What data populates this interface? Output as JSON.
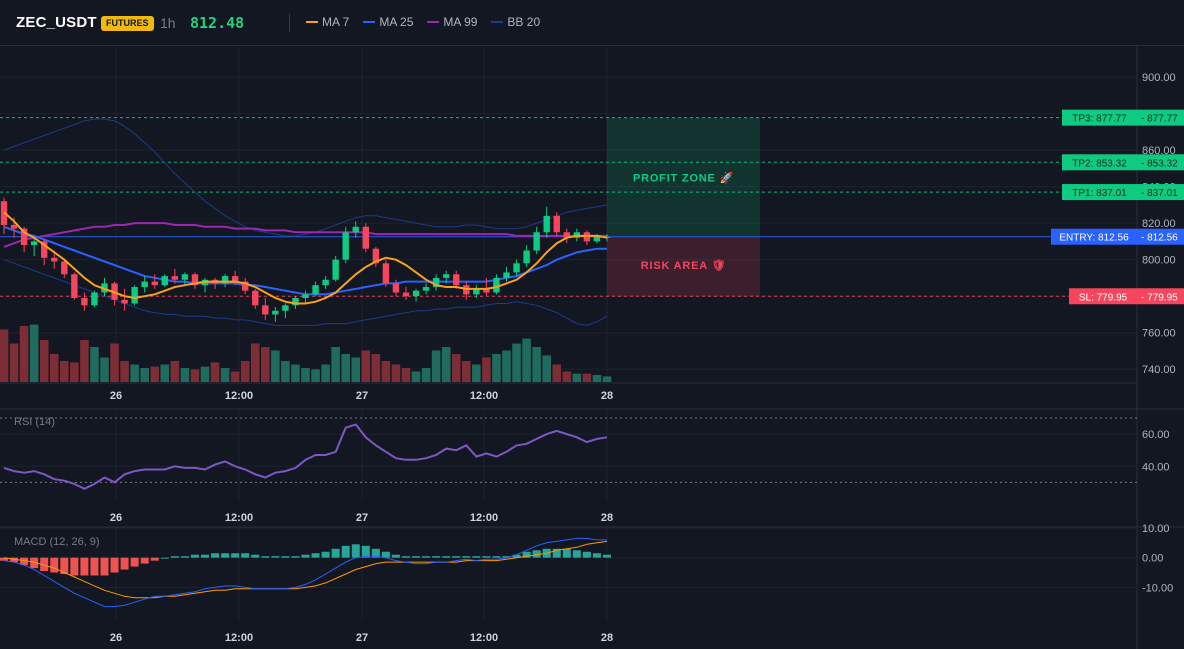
{
  "header": {
    "symbol": "ZEC_USDT",
    "badge": "FUTURES",
    "interval": "1h",
    "price": "812.48",
    "legend": [
      {
        "label": "MA 7",
        "color": "#f7a21b"
      },
      {
        "label": "MA 25",
        "color": "#2962ff"
      },
      {
        "label": "MA 99",
        "color": "#9c27b0"
      },
      {
        "label": "BB 20",
        "color": "#1e3a8a"
      }
    ]
  },
  "colors": {
    "up": "#0ecb81",
    "down": "#f6465d",
    "vol_up": "#1f6b5e",
    "vol_down": "#7c2d35",
    "ma7": "#f7a21b",
    "ma25": "#2962ff",
    "ma99": "#9c27b0",
    "bb": "#1e3a8a",
    "rsi": "#7e57c2",
    "macd": "#2962ff",
    "signal": "#ff9800",
    "hist_pos": "#26a69a",
    "hist_neg": "#ef5350",
    "tp": "#0ecb81",
    "sl": "#f6465d",
    "entry": "#2962ff"
  },
  "time_axis": {
    "labels": [
      "26",
      "12:00",
      "27",
      "12:00",
      "28"
    ]
  },
  "chart_data": [
    {
      "type": "candlestick",
      "name": "price-panel",
      "yaxis_ticks": [
        "900.00",
        "880.00",
        "860.00",
        "840.00",
        "820.00",
        "800.00",
        "780.00",
        "760.00",
        "740.00"
      ],
      "ylim": [
        733,
        917
      ],
      "candles": [
        [
          832,
          834,
          814,
          819
        ],
        [
          819,
          823,
          812,
          817
        ],
        [
          817,
          818,
          804,
          808
        ],
        [
          808,
          812,
          802,
          810
        ],
        [
          810,
          811,
          797,
          801
        ],
        [
          801,
          805,
          795,
          799
        ],
        [
          799,
          800,
          790,
          792
        ],
        [
          792,
          793,
          778,
          779
        ],
        [
          779,
          782,
          772,
          775
        ],
        [
          775,
          783,
          774,
          782
        ],
        [
          782,
          790,
          780,
          787
        ],
        [
          787,
          788,
          775,
          778
        ],
        [
          778,
          784,
          772,
          776
        ],
        [
          776,
          786,
          775,
          785
        ],
        [
          785,
          791,
          782,
          788
        ],
        [
          788,
          792,
          784,
          786
        ],
        [
          786,
          792,
          785,
          791
        ],
        [
          791,
          795,
          787,
          789
        ],
        [
          789,
          793,
          786,
          792
        ],
        [
          792,
          793,
          784,
          786
        ],
        [
          786,
          790,
          782,
          789
        ],
        [
          789,
          790,
          784,
          787
        ],
        [
          787,
          792,
          785,
          791
        ],
        [
          791,
          794,
          786,
          788
        ],
        [
          788,
          790,
          781,
          783
        ],
        [
          783,
          784,
          773,
          775
        ],
        [
          775,
          779,
          767,
          770
        ],
        [
          770,
          774,
          766,
          772
        ],
        [
          772,
          776,
          768,
          775
        ],
        [
          775,
          780,
          773,
          779
        ],
        [
          779,
          783,
          776,
          781
        ],
        [
          781,
          788,
          780,
          786
        ],
        [
          786,
          791,
          784,
          789
        ],
        [
          789,
          802,
          788,
          800
        ],
        [
          800,
          818,
          798,
          815
        ],
        [
          815,
          821,
          812,
          818
        ],
        [
          818,
          820,
          804,
          806
        ],
        [
          806,
          807,
          796,
          798
        ],
        [
          798,
          800,
          785,
          787
        ],
        [
          787,
          789,
          780,
          782
        ],
        [
          782,
          785,
          778,
          780
        ],
        [
          780,
          784,
          777,
          783
        ],
        [
          783,
          787,
          781,
          785
        ],
        [
          785,
          792,
          783,
          790
        ],
        [
          790,
          794,
          787,
          792
        ],
        [
          792,
          794,
          784,
          786
        ],
        [
          786,
          788,
          778,
          781
        ],
        [
          781,
          786,
          779,
          784
        ],
        [
          784,
          790,
          780,
          782
        ],
        [
          782,
          792,
          781,
          790
        ],
        [
          790,
          796,
          788,
          793
        ],
        [
          793,
          800,
          791,
          798
        ],
        [
          798,
          808,
          796,
          805
        ],
        [
          805,
          818,
          803,
          815
        ],
        [
          815,
          829,
          812,
          824
        ],
        [
          824,
          826,
          813,
          815
        ],
        [
          815,
          817,
          809,
          812
        ],
        [
          812,
          817,
          810,
          815
        ],
        [
          815,
          816,
          808,
          810
        ],
        [
          810,
          814,
          809,
          813
        ],
        [
          812,
          814,
          810,
          812.5
        ]
      ],
      "volume": [
        0.75,
        0.55,
        0.8,
        0.82,
        0.6,
        0.4,
        0.3,
        0.28,
        0.6,
        0.5,
        0.35,
        0.55,
        0.3,
        0.25,
        0.2,
        0.22,
        0.25,
        0.3,
        0.2,
        0.18,
        0.22,
        0.28,
        0.2,
        0.15,
        0.3,
        0.55,
        0.5,
        0.45,
        0.3,
        0.25,
        0.2,
        0.18,
        0.25,
        0.5,
        0.4,
        0.35,
        0.45,
        0.4,
        0.3,
        0.25,
        0.2,
        0.15,
        0.2,
        0.45,
        0.5,
        0.4,
        0.3,
        0.25,
        0.35,
        0.4,
        0.45,
        0.55,
        0.62,
        0.5,
        0.38,
        0.25,
        0.15,
        0.12,
        0.12,
        0.1,
        0.08
      ],
      "ma7": [
        826,
        821,
        815,
        812,
        808,
        804,
        800,
        795,
        790,
        786,
        784,
        782,
        780,
        779,
        780,
        781,
        783,
        785,
        786,
        787,
        788,
        788,
        788,
        788,
        787,
        785,
        782,
        779,
        777,
        776,
        776,
        777,
        779,
        782,
        787,
        792,
        796,
        799,
        801,
        800,
        797,
        793,
        789,
        786,
        785,
        785,
        784,
        784,
        784,
        785,
        787,
        789,
        793,
        798,
        804,
        809,
        812,
        813,
        813,
        813,
        812
      ],
      "ma25": [
        818,
        816,
        814,
        813,
        811,
        809,
        807,
        805,
        803,
        801,
        799,
        797,
        795,
        793,
        791,
        790,
        789,
        788,
        788,
        787,
        787,
        787,
        787,
        787,
        786,
        786,
        785,
        784,
        783,
        782,
        781,
        781,
        781,
        782,
        783,
        784,
        785,
        786,
        787,
        787,
        788,
        788,
        788,
        788,
        788,
        788,
        788,
        788,
        788,
        789,
        790,
        791,
        793,
        795,
        797,
        800,
        802,
        804,
        805,
        806,
        806
      ],
      "ma99": [
        807,
        809,
        811,
        812,
        813,
        814,
        815,
        816,
        817,
        818,
        818,
        819,
        819,
        820,
        820,
        820,
        820,
        819,
        819,
        819,
        818,
        818,
        818,
        817,
        817,
        817,
        816,
        816,
        816,
        815,
        815,
        815,
        815,
        815,
        815,
        815,
        815,
        814,
        814,
        814,
        814,
        814,
        814,
        814,
        814,
        814,
        814,
        814,
        814,
        814,
        814,
        813,
        813,
        813,
        813,
        813,
        813,
        813,
        813,
        813,
        813
      ],
      "bb_upper": [
        860,
        862,
        864,
        866,
        868,
        870,
        872,
        874,
        876,
        877,
        877,
        876,
        873,
        869,
        864,
        859,
        853,
        847,
        842,
        837,
        832,
        828,
        824,
        821,
        818,
        816,
        815,
        814,
        813,
        813,
        814,
        815,
        817,
        819,
        821,
        823,
        824,
        824,
        823,
        822,
        821,
        820,
        819,
        818,
        818,
        818,
        819,
        819,
        818,
        817,
        817,
        817,
        818,
        820,
        822,
        824,
        826,
        827,
        828,
        829,
        830
      ],
      "bb_lower": [
        800,
        798,
        796,
        794,
        792,
        790,
        788,
        786,
        784,
        782,
        780,
        778,
        776,
        774,
        772,
        771,
        770,
        770,
        769,
        769,
        769,
        768,
        768,
        767,
        767,
        766,
        765,
        764,
        764,
        764,
        764,
        764,
        765,
        765,
        765,
        766,
        767,
        768,
        769,
        770,
        771,
        772,
        772,
        773,
        773,
        774,
        774,
        774,
        775,
        776,
        776,
        777,
        776,
        775,
        773,
        771,
        768,
        765,
        764,
        766,
        769
      ]
    },
    {
      "type": "line",
      "name": "RSI",
      "label": "RSI (14)",
      "yaxis_ticks": [
        "60.00",
        "40.00"
      ],
      "ylim": [
        19,
        75
      ],
      "upper_band": 70,
      "lower_band": 30,
      "values": [
        39,
        37,
        36,
        37,
        35,
        32,
        31,
        29,
        26,
        29,
        33,
        30,
        35,
        37,
        38,
        38,
        38,
        40,
        39,
        39,
        38,
        41,
        43,
        40,
        38,
        35,
        33,
        36,
        37,
        39,
        44,
        47,
        47,
        49,
        64,
        66,
        58,
        53,
        49,
        45,
        44,
        44,
        45,
        47,
        51,
        50,
        53,
        46,
        48,
        46,
        49,
        53,
        54,
        57,
        60,
        62,
        60,
        58,
        55,
        57,
        58
      ]
    },
    {
      "type": "line",
      "name": "MACD",
      "label": "MACD (12, 26, 9)",
      "yaxis_ticks": [
        "10.00",
        "0.00",
        "-10.00"
      ],
      "ylim": [
        -21,
        10
      ],
      "macd": [
        -1,
        -1.5,
        -2.5,
        -4,
        -6,
        -8,
        -10,
        -12,
        -13.5,
        -15,
        -16.5,
        -16.5,
        -16,
        -15,
        -14,
        -13,
        -13,
        -12.5,
        -12,
        -11.5,
        -10.5,
        -10,
        -9.5,
        -9.5,
        -10,
        -10.5,
        -10.5,
        -10.5,
        -10.5,
        -10,
        -9,
        -7.5,
        -5.5,
        -3.5,
        -1.5,
        0,
        0.5,
        0.5,
        0,
        -1,
        -1.5,
        -2,
        -2,
        -1.5,
        -1.5,
        -1,
        -0.5,
        -1,
        -0.5,
        -0.5,
        0,
        1,
        2.5,
        4,
        5,
        5.5,
        6,
        6.5,
        6.5,
        6,
        6
      ],
      "signal": [
        0,
        -0.5,
        -1,
        -1.5,
        -2.5,
        -3.5,
        -5,
        -6.5,
        -8,
        -9.5,
        -11,
        -12,
        -13,
        -13.5,
        -13.5,
        -13.5,
        -13,
        -13,
        -12.5,
        -12,
        -11.5,
        -11,
        -11,
        -10.5,
        -10.5,
        -10.5,
        -10.5,
        -10.5,
        -10.5,
        -10.5,
        -10,
        -9.5,
        -8.5,
        -7,
        -5.5,
        -4,
        -3,
        -2,
        -1.5,
        -1.5,
        -1.5,
        -1.5,
        -1.5,
        -1.5,
        -1.5,
        -1.5,
        -1,
        -1,
        -1,
        -1,
        -0.5,
        0,
        0.5,
        1,
        1.5,
        2.5,
        3,
        3.5,
        4.5,
        5,
        5.5
      ],
      "histogram": [
        -1,
        -1.5,
        -2.5,
        -3.5,
        -4.5,
        -5,
        -5.5,
        -6,
        -6,
        -6,
        -6,
        -5,
        -4,
        -3,
        -2,
        -1,
        0,
        0.5,
        0.5,
        1,
        1,
        1.5,
        1.5,
        1.5,
        1.5,
        1,
        0.5,
        0.5,
        0.5,
        0.5,
        1,
        1.5,
        2,
        3,
        4,
        4.5,
        4,
        3,
        2,
        1,
        0.5,
        0.5,
        0.5,
        0.5,
        0.5,
        0.5,
        0.5,
        0.5,
        0.5,
        0.5,
        0.5,
        1,
        2,
        2.5,
        3,
        3,
        3,
        2.5,
        2,
        1.5,
        1
      ]
    }
  ],
  "trade": {
    "tp3": {
      "value": 877.77,
      "label": "TP3: 877.77",
      "axis": "877.77"
    },
    "tp2": {
      "value": 853.32,
      "label": "TP2: 853.32",
      "axis": "853.32"
    },
    "tp1": {
      "value": 837.01,
      "label": "TP1: 837.01",
      "axis": "837.01"
    },
    "entry": {
      "value": 812.56,
      "label": "ENTRY: 812.56",
      "axis": "812.56"
    },
    "sl": {
      "value": 779.95,
      "label": "SL: 779.95",
      "axis": "779.95"
    },
    "profit_zone": "PROFIT ZONE 🚀",
    "risk_area": "RISK AREA 🛡"
  }
}
